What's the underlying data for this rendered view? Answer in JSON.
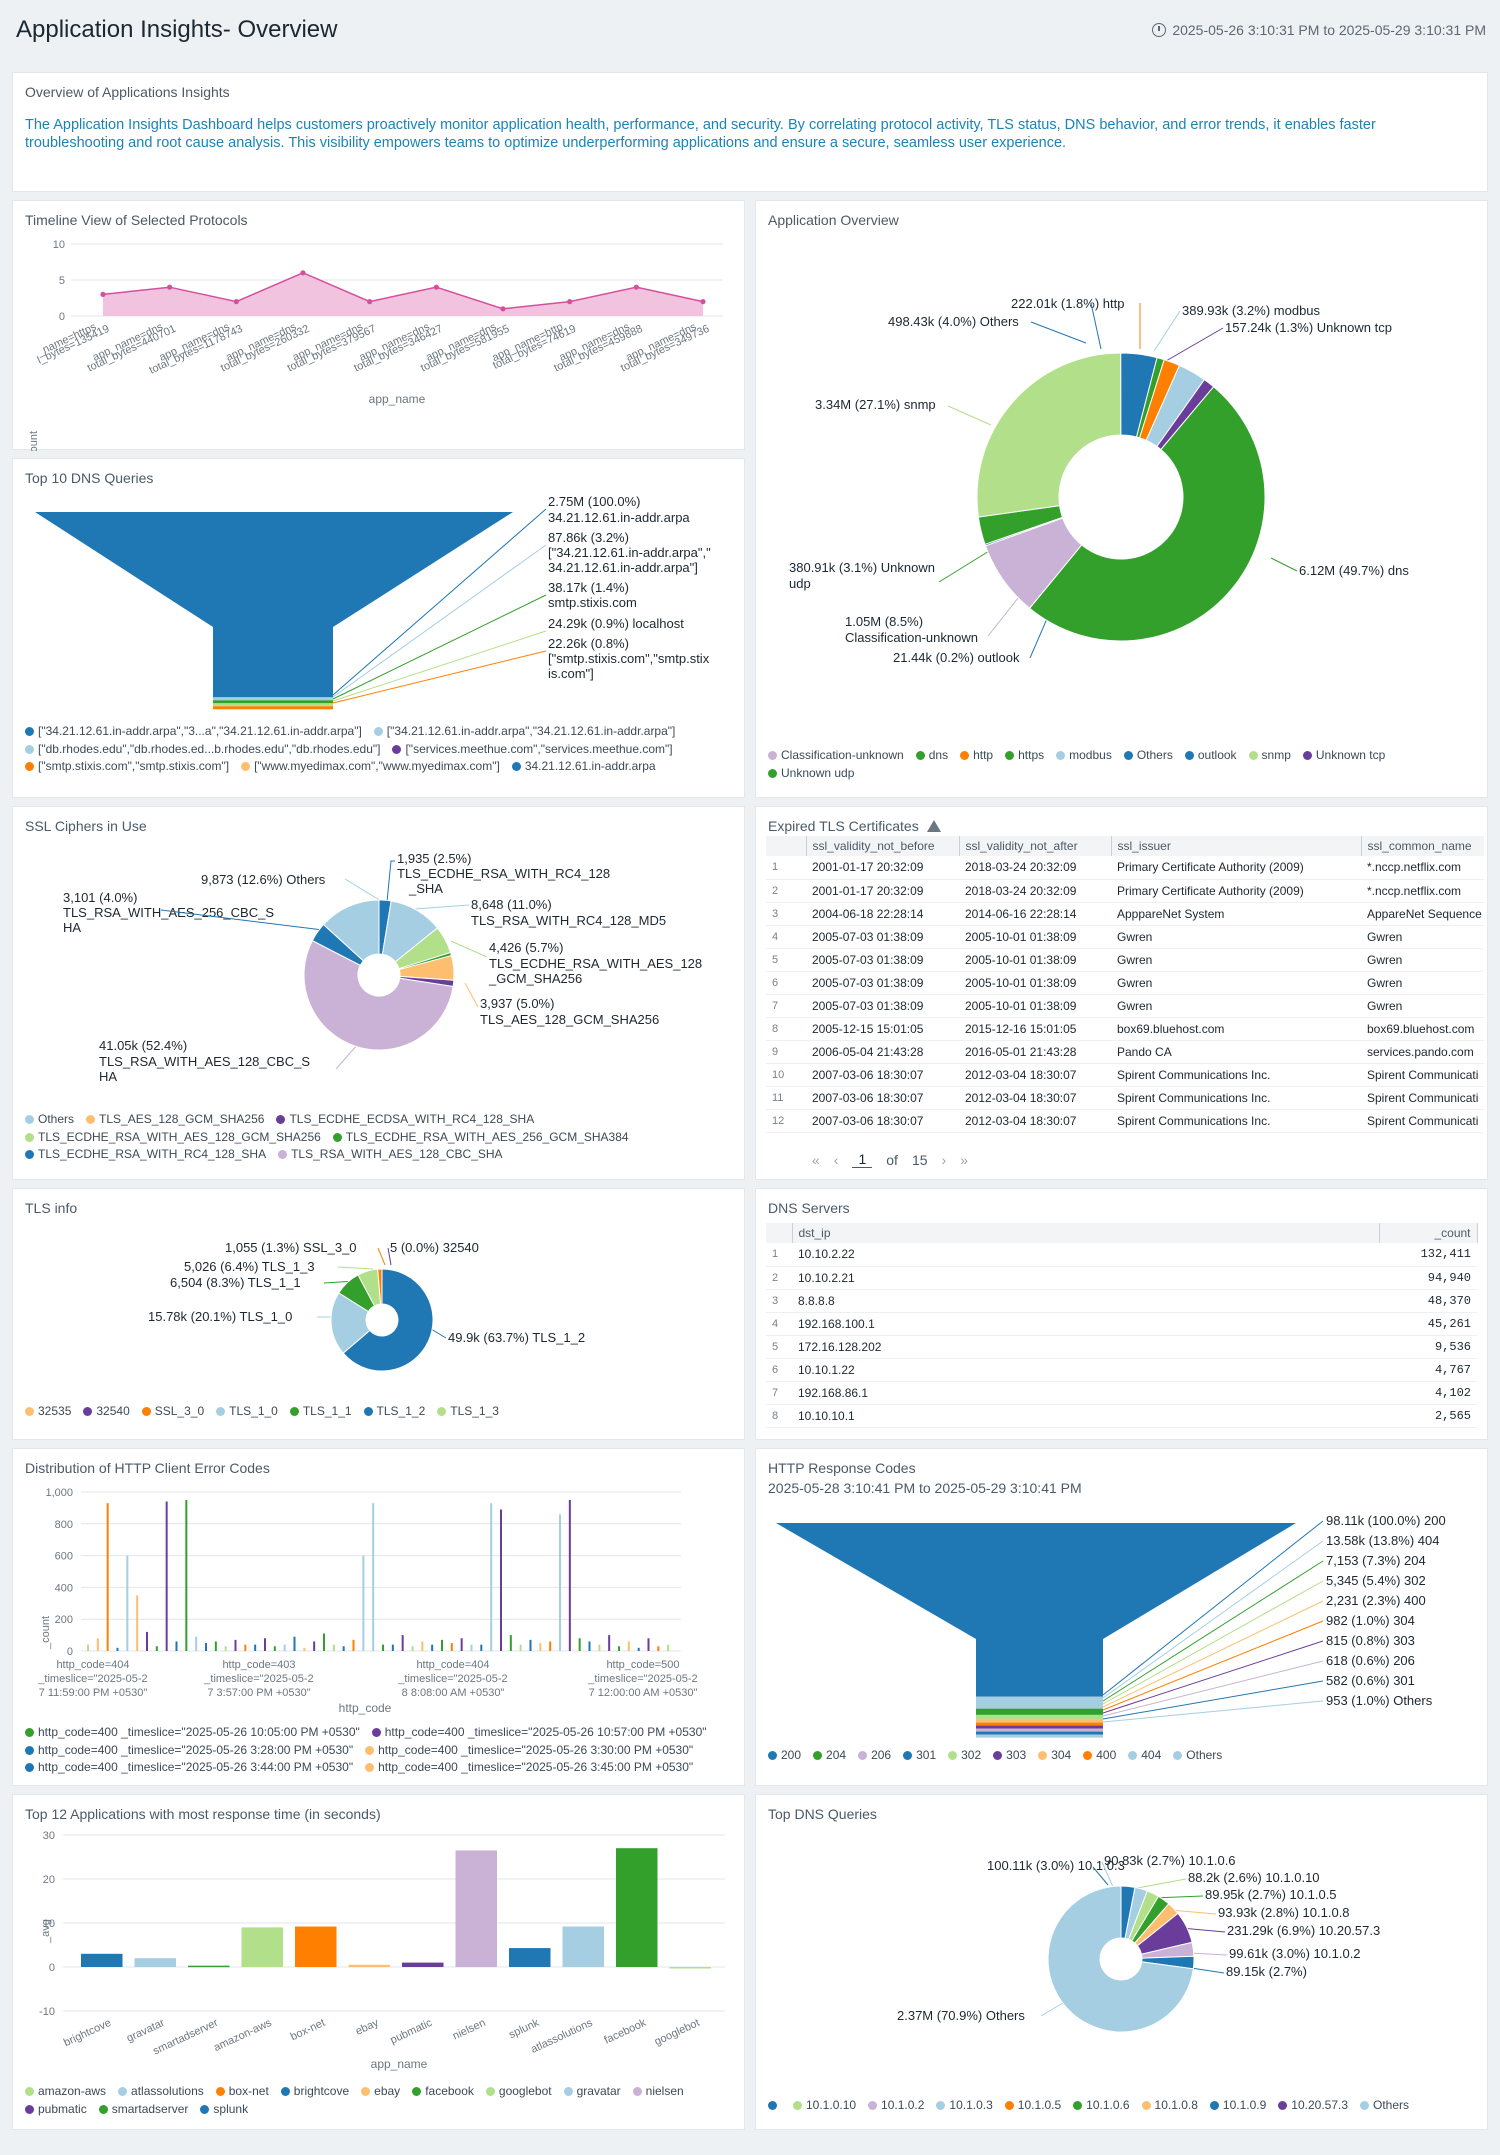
{
  "header": {
    "title": "Application Insights- Overview",
    "time_range": "2025-05-26 3:10:31 PM to 2025-05-29 3:10:31 PM"
  },
  "overview": {
    "title": "Overview of Applications Insights",
    "text": "The Application Insights Dashboard helps customers proactively monitor application health, performance, and security. By correlating protocol activity, TLS status, DNS behavior, and error trends, it enables faster troubleshooting and root cause analysis. This visibility empowers teams to optimize underperforming applications and ensure a secure, seamless user experience."
  },
  "colors": {
    "accent": "#1a84b8",
    "pink": "#d64f9d",
    "dark_blue": "#1f77b4",
    "light_blue": "#a6cee3",
    "green": "#33a02c",
    "light_green": "#b2df8a",
    "orange": "#ff7f00",
    "light_orange": "#fdbf6f",
    "purple": "#6a3d9a",
    "lavender": "#cab2d6"
  },
  "timeline": {
    "title": "Timeline View of Selected Protocols",
    "ylabel": "_count",
    "xlabel": "app_name",
    "yticks": [
      "10",
      "5",
      "0"
    ],
    "x_labels": [
      [
        "_name=https",
        "l_bytes=135419"
      ],
      [
        "app_name=dns",
        "total_bytes=440701"
      ],
      [
        "app_name=dns",
        "total_bytes=1178743"
      ],
      [
        "app_name=dns",
        "total_bytes=260332"
      ],
      [
        "app_name=dns",
        "total_bytes=379567"
      ],
      [
        "app_name=dns",
        "total_bytes=346427"
      ],
      [
        "app_name=dns",
        "total_bytes=581955"
      ],
      [
        "app_name=http",
        "total_bytes=74619"
      ],
      [
        "app_name=dns",
        "total_bytes=459888"
      ],
      [
        "app_name=dns",
        "total_bytes=349736"
      ]
    ]
  },
  "app_overview": {
    "title": "Application Overview",
    "labels": [
      "222.01k (1.8%) http",
      "389.93k (3.2%) modbus",
      "157.24k (1.3%) Unknown tcp",
      "498.43k (4.0%) Others",
      "3.34M (27.1%) snmp",
      "6.12M (49.7%) dns",
      "380.91k (3.1%) Unknown",
      "udp",
      "1.05M (8.5%)",
      "Classification-unknown",
      "21.44k (0.2%) outlook"
    ],
    "legend": [
      "Classification-unknown",
      "dns",
      "http",
      "https",
      "modbus",
      "Others",
      "outlook",
      "snmp",
      "Unknown tcp",
      "Unknown udp"
    ]
  },
  "dns_queries": {
    "title": "Top 10 DNS Queries",
    "labels": [
      "2.75M (100.0%)",
      "34.21.12.61.in-addr.arpa",
      "87.86k (3.2%)",
      "[\"34.21.12.61.in-addr.arpa\",\"",
      "34.21.12.61.in-addr.arpa\"]",
      "38.17k (1.4%)",
      "smtp.stixis.com",
      "24.29k (0.9%) localhost",
      "22.26k (0.8%)",
      "[\"smtp.stixis.com\",\"smtp.stix",
      "is.com\"]"
    ],
    "legend": [
      "[\"34.21.12.61.in-addr.arpa\",\"3...a\",\"34.21.12.61.in-addr.arpa\"]",
      "[\"34.21.12.61.in-addr.arpa\",\"34.21.12.61.in-addr.arpa\"]",
      "[\"db.rhodes.edu\",\"db.rhodes.ed...b.rhodes.edu\",\"db.rhodes.edu\"]",
      "[\"services.meethue.com\",\"services.meethue.com\"]",
      "[\"smtp.stixis.com\",\"smtp.stixis.com\"]",
      "[\"www.myedimax.com\",\"www.myedimax.com\"]",
      "34.21.12.61.in-addr.arpa"
    ]
  },
  "ssl_ciphers": {
    "title": "SSL Ciphers in Use",
    "labels": [
      "1,935 (2.5%)",
      "TLS_ECDHE_RSA_WITH_RC4_128",
      "_SHA",
      "9,873 (12.6%) Others",
      "8,648 (11.0%)",
      "TLS_RSA_WITH_RC4_128_MD5",
      "3,101 (4.0%)",
      "TLS_RSA_WITH_AES_256_CBC_S",
      "HA",
      "4,426 (5.7%)",
      "TLS_ECDHE_RSA_WITH_AES_128",
      "_GCM_SHA256",
      "3,937 (5.0%)",
      "TLS_AES_128_GCM_SHA256",
      "41.05k (52.4%)",
      "TLS_RSA_WITH_AES_128_CBC_S",
      "HA"
    ],
    "legend": [
      "Others",
      "TLS_AES_128_GCM_SHA256",
      "TLS_ECDHE_ECDSA_WITH_RC4_128_SHA",
      "TLS_ECDHE_RSA_WITH_AES_128_GCM_SHA256",
      "TLS_ECDHE_RSA_WITH_AES_256_GCM_SHA384",
      "TLS_ECDHE_RSA_WITH_RC4_128_SHA",
      "TLS_RSA_WITH_AES_128_CBC_SHA"
    ]
  },
  "expired_tls": {
    "title": "Expired TLS Certificates",
    "columns": [
      "ssl_validity_not_before",
      "ssl_validity_not_after",
      "ssl_issuer",
      "ssl_common_name"
    ],
    "rows": [
      [
        "1",
        "2001-01-17 20:32:09",
        "2018-03-24 20:32:09",
        "Primary Certificate Authority (2009)",
        "*.nccp.netflix.com"
      ],
      [
        "2",
        "2001-01-17 20:32:09",
        "2018-03-24 20:32:09",
        "Primary Certificate Authority (2009)",
        "*.nccp.netflix.com"
      ],
      [
        "3",
        "2004-06-18 22:28:14",
        "2014-06-16 22:28:14",
        "ApppareNet System",
        "AppareNet Sequence"
      ],
      [
        "4",
        "2005-07-03 01:38:09",
        "2005-10-01 01:38:09",
        "Gwren",
        "Gwren"
      ],
      [
        "5",
        "2005-07-03 01:38:09",
        "2005-10-01 01:38:09",
        "Gwren",
        "Gwren"
      ],
      [
        "6",
        "2005-07-03 01:38:09",
        "2005-10-01 01:38:09",
        "Gwren",
        "Gwren"
      ],
      [
        "7",
        "2005-07-03 01:38:09",
        "2005-10-01 01:38:09",
        "Gwren",
        "Gwren"
      ],
      [
        "8",
        "2005-12-15 15:01:05",
        "2015-12-16 15:01:05",
        "box69.bluehost.com",
        "box69.bluehost.com"
      ],
      [
        "9",
        "2006-05-04 21:43:28",
        "2016-05-01 21:43:28",
        "Pando CA",
        "services.pando.com"
      ],
      [
        "10",
        "2007-03-06 18:30:07",
        "2012-03-04 18:30:07",
        "Spirent Communications Inc.",
        "Spirent Communicati"
      ],
      [
        "11",
        "2007-03-06 18:30:07",
        "2012-03-04 18:30:07",
        "Spirent Communications Inc.",
        "Spirent Communicati"
      ],
      [
        "12",
        "2007-03-06 18:30:07",
        "2012-03-04 18:30:07",
        "Spirent Communications Inc.",
        "Spirent Communicati"
      ]
    ],
    "page": "1",
    "of_label": "of",
    "total_pages": "15"
  },
  "tls_info": {
    "title": "TLS info",
    "labels": [
      "1,055 (1.3%) SSL_3_0",
      "5 (0.0%) 32540",
      "5,026 (6.4%) TLS_1_3",
      "6,504 (8.3%) TLS_1_1",
      "15.78k (20.1%) TLS_1_0",
      "49.9k (63.7%) TLS_1_2"
    ],
    "legend": [
      "32535",
      "32540",
      "SSL_3_0",
      "TLS_1_0",
      "TLS_1_1",
      "TLS_1_2",
      "TLS_1_3"
    ]
  },
  "dns_servers": {
    "title": "DNS Servers",
    "columns": [
      "dst_ip",
      "_count"
    ],
    "rows": [
      [
        "1",
        "10.10.2.22",
        "132,411"
      ],
      [
        "2",
        "10.10.2.21",
        "94,940"
      ],
      [
        "3",
        "8.8.8.8",
        "48,370"
      ],
      [
        "4",
        "192.168.100.1",
        "45,261"
      ],
      [
        "5",
        "172.16.128.202",
        "9,536"
      ],
      [
        "6",
        "10.10.1.22",
        "4,767"
      ],
      [
        "7",
        "192.168.86.1",
        "4,102"
      ],
      [
        "8",
        "10.10.10.1",
        "2,565"
      ]
    ]
  },
  "http_errors": {
    "title": "Distribution of HTTP Client Error Codes",
    "ylabel": "_count",
    "xlabel": "http_code",
    "yticks": [
      "1,000",
      "800",
      "600",
      "400",
      "200",
      "0"
    ],
    "x_labels": [
      [
        "http_code=404",
        "_timeslice=\"2025-05-2",
        "7 11:59:00 PM +0530\""
      ],
      [
        "http_code=403",
        "_timeslice=\"2025-05-2",
        "7 3:57:00 PM +0530\""
      ],
      [
        "http_code=404",
        "_timeslice=\"2025-05-2",
        "8 8:08:00 AM +0530\""
      ],
      [
        "http_code=500",
        "_timeslice=\"2025-05-2",
        "7 12:00:00 AM +0530\""
      ]
    ],
    "legend": [
      "http_code=400 _timeslice=\"2025-05-26 10:05:00 PM +0530\"",
      "http_code=400 _timeslice=\"2025-05-26 10:57:00 PM +0530\"",
      "http_code=400 _timeslice=\"2025-05-26 3:28:00 PM +0530\"",
      "http_code=400 _timeslice=\"2025-05-26 3:30:00 PM +0530\"",
      "http_code=400 _timeslice=\"2025-05-26 3:44:00 PM +0530\"",
      "http_code=400 _timeslice=\"2025-05-26 3:45:00 PM +0530\""
    ]
  },
  "http_response": {
    "title": "HTTP Response Codes",
    "subtitle": "2025-05-28 3:10:41 PM to 2025-05-29 3:10:41 PM",
    "labels": [
      "98.11k (100.0%) 200",
      "13.58k (13.8%) 404",
      "7,153 (7.3%) 204",
      "5,345 (5.4%) 302",
      "2,231 (2.3%) 400",
      "982 (1.0%) 304",
      "815 (0.8%) 303",
      "618 (0.6%) 206",
      "582 (0.6%) 301",
      "953 (1.0%) Others"
    ],
    "legend": [
      "200",
      "204",
      "206",
      "301",
      "302",
      "303",
      "304",
      "400",
      "404",
      "Others"
    ]
  },
  "response_time": {
    "title": "Top 12 Applications with most response time (in seconds)",
    "ylabel": "_avg",
    "xlabel": "app_name",
    "yticks": [
      "30",
      "20",
      "10",
      "0",
      "-10"
    ],
    "legend": [
      "amazon-aws",
      "atlassolutions",
      "box-net",
      "brightcove",
      "ebay",
      "facebook",
      "googlebot",
      "gravatar",
      "nielsen",
      "pubmatic",
      "smartadserver",
      "splunk"
    ]
  },
  "top_dns": {
    "title": "Top DNS Queries",
    "labels": [
      "100.11k (3.0%) 10.1.0.3",
      "90.83k (2.7%) 10.1.0.6",
      "88.2k (2.6%) 10.1.0.10",
      "89.95k (2.7%) 10.1.0.5",
      "93.93k (2.8%) 10.1.0.8",
      "231.29k (6.9%) 10.20.57.3",
      "99.61k (3.0%) 10.1.0.2",
      "89.15k (2.7%)",
      "2.37M (70.9%) Others"
    ],
    "legend": [
      "",
      "10.1.0.10",
      "10.1.0.2",
      "10.1.0.3",
      "10.1.0.5",
      "10.1.0.6",
      "10.1.0.8",
      "10.1.0.9",
      "10.20.57.3",
      "Others"
    ]
  },
  "chart_data": [
    {
      "type": "area",
      "title": "Timeline View of Selected Protocols",
      "ylabel": "_count",
      "xlabel": "app_name",
      "ylim": [
        0,
        10
      ],
      "values": [
        3,
        4,
        2,
        6,
        2,
        4,
        1,
        2,
        4,
        2
      ]
    },
    {
      "type": "pie",
      "title": "Application Overview",
      "slices": [
        {
          "label": "dns",
          "value": 6120000,
          "color": "#33a02c"
        },
        {
          "label": "Classification-unknown",
          "value": 1050000,
          "color": "#cab2d6"
        },
        {
          "label": "outlook",
          "value": 21440,
          "color": "#1f77b4"
        },
        {
          "label": "Unknown udp",
          "value": 380910,
          "color": "#33a02c"
        },
        {
          "label": "snmp",
          "value": 3340000,
          "color": "#b2df8a"
        },
        {
          "label": "Others",
          "value": 498430,
          "color": "#1f77b4"
        },
        {
          "label": "https",
          "value": 100000,
          "color": "#33a02c"
        },
        {
          "label": "http",
          "value": 222010,
          "color": "#ff7f00"
        },
        {
          "label": "modbus",
          "value": 389930,
          "color": "#a6cee3"
        },
        {
          "label": "Unknown tcp",
          "value": 157240,
          "color": "#6a3d9a"
        }
      ]
    },
    {
      "type": "funnel",
      "title": "Top 10 DNS Queries",
      "values": [
        2750000,
        87860,
        38170,
        24290,
        22260
      ],
      "colors": [
        "#1f77b4",
        "#a6cee3",
        "#33a02c",
        "#b2df8a",
        "#ff7f00"
      ]
    },
    {
      "type": "pie",
      "title": "SSL Ciphers in Use",
      "slices": [
        {
          "label": "TLS_ECDHE_RSA_WITH_RC4_128_SHA",
          "value": 1935,
          "color": "#1f77b4"
        },
        {
          "label": "TLS_RSA_WITH_RC4_128_MD5",
          "value": 8648,
          "color": "#a6cee3"
        },
        {
          "label": "TLS_ECDHE_RSA_WITH_AES_128_GCM_SHA256",
          "value": 4426,
          "color": "#b2df8a"
        },
        {
          "label": "TLS_ECDHE_RSA_WITH_AES_256_GCM_SHA384",
          "value": 500,
          "color": "#33a02c"
        },
        {
          "label": "TLS_AES_128_GCM_SHA256",
          "value": 3937,
          "color": "#fdbf6f"
        },
        {
          "label": "TLS_ECDHE_ECDSA_WITH_RC4_128_SHA",
          "value": 1000,
          "color": "#6a3d9a"
        },
        {
          "label": "TLS_RSA_WITH_AES_128_CBC_SHA",
          "value": 41050,
          "color": "#cab2d6"
        },
        {
          "label": "TLS_RSA_WITH_AES_256_CBC_SHA",
          "value": 3101,
          "color": "#1f77b4"
        },
        {
          "label": "Others",
          "value": 9873,
          "color": "#a6cee3"
        }
      ]
    },
    {
      "type": "pie",
      "title": "TLS info",
      "slices": [
        {
          "label": "TLS_1_2",
          "value": 49900,
          "color": "#1f77b4"
        },
        {
          "label": "TLS_1_0",
          "value": 15780,
          "color": "#a6cee3"
        },
        {
          "label": "TLS_1_1",
          "value": 6504,
          "color": "#33a02c"
        },
        {
          "label": "TLS_1_3",
          "value": 5026,
          "color": "#b2df8a"
        },
        {
          "label": "SSL_3_0",
          "value": 1055,
          "color": "#ff7f00"
        },
        {
          "label": "32540",
          "value": 5,
          "color": "#6a3d9a"
        }
      ]
    },
    {
      "type": "bar",
      "title": "Distribution of HTTP Client Error Codes",
      "ylabel": "_count",
      "xlabel": "http_code",
      "ylim": [
        0,
        1000
      ],
      "values": [
        40,
        80,
        930,
        20,
        600,
        350,
        120,
        30,
        940,
        60,
        950,
        90,
        50,
        60,
        30,
        70,
        40,
        40,
        80,
        30,
        40,
        90,
        20,
        60,
        110,
        40,
        30,
        70,
        600,
        930,
        40,
        40,
        100,
        30,
        60,
        40,
        70,
        50,
        80,
        40,
        40,
        930,
        890,
        100,
        40,
        70,
        50,
        60,
        860,
        950,
        80,
        60,
        40,
        100,
        30,
        60,
        20,
        80,
        30,
        40
      ],
      "colors": [
        "#b2df8a",
        "#fdbf6f",
        "#ff7f00",
        "#1f77b4",
        "#a6cee3",
        "#fdbf6f",
        "#6a3d9a",
        "#33a02c",
        "#6a3d9a",
        "#1f77b4",
        "#33a02c",
        "#a6cee3",
        "#1f77b4",
        "#33a02c",
        "#b2df8a",
        "#6a3d9a",
        "#ff7f00",
        "#1f77b4",
        "#6a3d9a",
        "#33a02c",
        "#a6cee3",
        "#1f77b4",
        "#fdbf6f",
        "#6a3d9a",
        "#33a02c",
        "#b2df8a",
        "#1f77b4",
        "#ff7f00",
        "#a6cee3",
        "#a6cee3",
        "#33a02c",
        "#1f77b4",
        "#6a3d9a",
        "#b2df8a",
        "#fdbf6f",
        "#1f77b4",
        "#33a02c",
        "#ff7f00",
        "#6a3d9a",
        "#a6cee3",
        "#1f77b4",
        "#a6cee3",
        "#6a3d9a",
        "#33a02c",
        "#b2df8a",
        "#1f77b4",
        "#fdbf6f",
        "#ff7f00",
        "#a6cee3",
        "#6a3d9a",
        "#33a02c",
        "#1f77b4",
        "#b2df8a",
        "#6a3d9a",
        "#33a02c",
        "#fdbf6f",
        "#1f77b4",
        "#6a3d9a",
        "#ff7f00",
        "#b2df8a"
      ]
    },
    {
      "type": "funnel",
      "title": "HTTP Response Codes",
      "values": [
        98110,
        13580,
        7153,
        5345,
        2231,
        982,
        815,
        618,
        582,
        953
      ],
      "colors": [
        "#1f77b4",
        "#a6cee3",
        "#33a02c",
        "#b2df8a",
        "#fdbf6f",
        "#ff7f00",
        "#6a3d9a",
        "#cab2d6",
        "#1f77b4",
        "#a6cee3"
      ]
    },
    {
      "type": "bar",
      "title": "Top 12 Applications with most response time (in seconds)",
      "ylabel": "_avg",
      "xlabel": "app_name",
      "ylim": [
        -10,
        30
      ],
      "categories": [
        "brightcove",
        "gravatar",
        "smartadserver",
        "amazon-aws",
        "box-net",
        "ebay",
        "pubmatic",
        "nielsen",
        "splunk",
        "atlassolutions",
        "facebook",
        "googlebot"
      ],
      "values": [
        3.0,
        2.0,
        0.3,
        9.0,
        9.2,
        0.5,
        1.0,
        26.5,
        4.3,
        9.2,
        27.0,
        0.0
      ],
      "colors": [
        "#1f77b4",
        "#a6cee3",
        "#33a02c",
        "#b2df8a",
        "#ff7f00",
        "#fdbf6f",
        "#6a3d9a",
        "#cab2d6",
        "#1f77b4",
        "#a6cee3",
        "#33a02c",
        "#b2df8a"
      ]
    },
    {
      "type": "pie",
      "title": "Top DNS Queries",
      "slices": [
        {
          "label": "10.1.0.3",
          "value": 100110,
          "color": "#1f77b4"
        },
        {
          "label": "10.1.0.6",
          "value": 90830,
          "color": "#a6cee3"
        },
        {
          "label": "10.1.0.10",
          "value": 88200,
          "color": "#b2df8a"
        },
        {
          "label": "10.1.0.5",
          "value": 89950,
          "color": "#33a02c"
        },
        {
          "label": "10.1.0.8",
          "value": 93930,
          "color": "#fdbf6f"
        },
        {
          "label": "10.20.57.3",
          "value": 231290,
          "color": "#6a3d9a"
        },
        {
          "label": "10.1.0.2",
          "value": 99610,
          "color": "#cab2d6"
        },
        {
          "label": "10.1.0.9",
          "value": 89150,
          "color": "#1f77b4"
        },
        {
          "label": "Others",
          "value": 2370000,
          "color": "#a6cee3"
        }
      ]
    }
  ]
}
